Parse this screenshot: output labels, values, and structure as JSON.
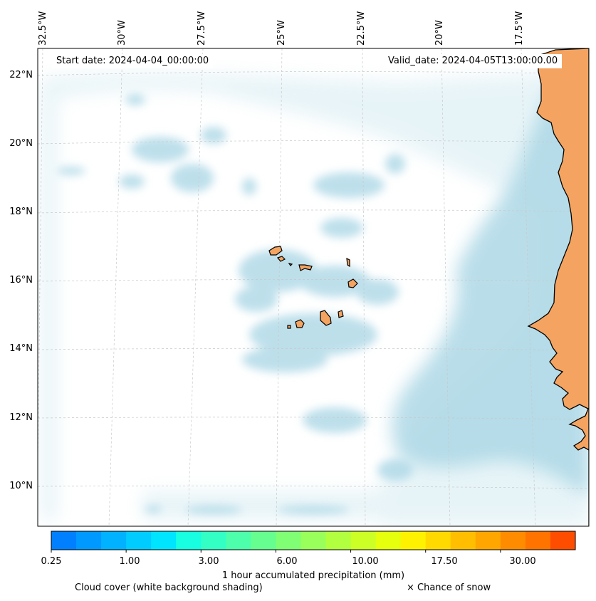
{
  "header": {
    "start_date": "Start date: 2024-04-04_00:00:00",
    "valid_date": "Valid_date: 2024-04-05T13:00:00.00"
  },
  "axes": {
    "lon_labels": [
      "32.5°W",
      "30°W",
      "27.5°W",
      "25°W",
      "22.5°W",
      "20°W",
      "17.5°W"
    ],
    "lat_labels": [
      "22°N",
      "20°N",
      "18°N",
      "16°N",
      "14°N",
      "12°N",
      "10°N"
    ]
  },
  "colorbar": {
    "colors": [
      "#0080ff",
      "#0099ff",
      "#00b2ff",
      "#00ccff",
      "#00e5ff",
      "#17ffe0",
      "#33ffc4",
      "#4dffaa",
      "#66ff8f",
      "#80ff75",
      "#99ff5a",
      "#b2ff40",
      "#ccff26",
      "#e5ff0d",
      "#fff200",
      "#ffd900",
      "#ffbf00",
      "#ffa600",
      "#ff8c00",
      "#ff7300",
      "#ff4d00"
    ],
    "tick_labels": [
      "0.25",
      "1.00",
      "3.00",
      "6.00",
      "10.00",
      "17.50",
      "30.00"
    ],
    "label": "1 hour accumulated precipitation (mm)"
  },
  "footer": {
    "cloud_note": "Cloud cover (white background shading)",
    "snow_note": "× Chance of snow"
  },
  "colors": {
    "cloud": "#add8e6",
    "land": "#f4a460",
    "coastline": "#000000",
    "grid": "#c8c8c8"
  }
}
